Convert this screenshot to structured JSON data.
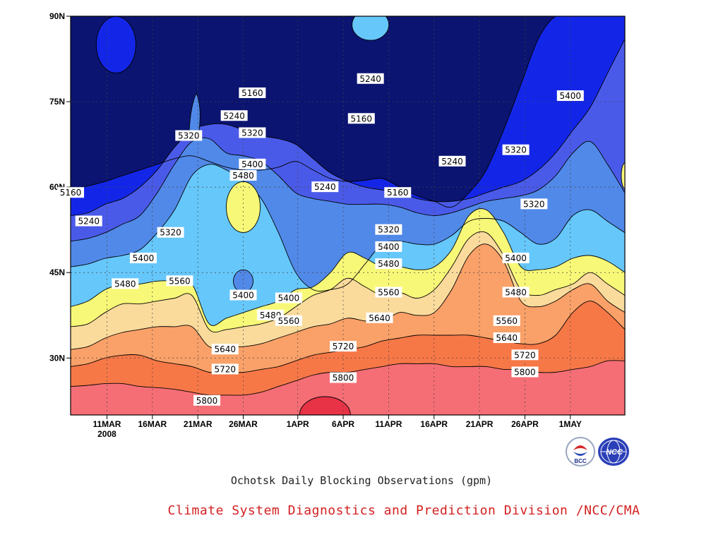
{
  "chart_data": {
    "type": "heatmap",
    "subtype": "filled-contour",
    "title": "Ochotsk Daily Blocking Observations (gpm)",
    "x_axis": {
      "ticks": [
        {
          "label": "11MAR",
          "date": "2008-03-11"
        },
        {
          "label": "16MAR",
          "date": "2008-03-16"
        },
        {
          "label": "21MAR",
          "date": "2008-03-21"
        },
        {
          "label": "26MAR",
          "date": "2008-03-26"
        },
        {
          "label": "1APR",
          "date": "2008-04-01"
        },
        {
          "label": "6APR",
          "date": "2008-04-06"
        },
        {
          "label": "11APR",
          "date": "2008-04-11"
        },
        {
          "label": "16APR",
          "date": "2008-04-16"
        },
        {
          "label": "21APR",
          "date": "2008-04-21"
        },
        {
          "label": "26APR",
          "date": "2008-04-26"
        },
        {
          "label": "1MAY",
          "date": "2008-05-01"
        }
      ],
      "year_label": "2008",
      "range": [
        "2008-03-07",
        "2008-05-07"
      ]
    },
    "y_axis": {
      "ticks": [
        "30N",
        "45N",
        "60N",
        "75N",
        "90N"
      ],
      "tick_values": [
        30,
        45,
        60,
        75,
        90
      ],
      "range": [
        20,
        90
      ]
    },
    "grid": true,
    "contour_levels": [
      5160,
      5240,
      5320,
      5400,
      5480,
      5560,
      5640,
      5720,
      5800
    ],
    "fill_colors": [
      "#0b1470",
      "#1326e8",
      "#4a5ae8",
      "#5189e8",
      "#66c7fb",
      "#f8f878",
      "#fadb9c",
      "#f9a168",
      "#f77847",
      "#f56e76",
      "#e83246"
    ],
    "boundaries": [
      {
        "level": 5160,
        "lats": [
          59.5,
          60.2,
          61,
          62,
          63,
          64,
          65,
          65.5,
          64.5,
          63.5,
          63,
          63,
          63.5,
          64.5,
          63,
          61.5,
          61,
          61.2,
          61.5,
          60,
          58.5,
          57.5,
          56.5,
          59,
          63,
          70,
          78,
          86,
          90,
          90,
          90,
          90,
          90
        ]
      },
      {
        "level": 5240,
        "lats": [
          55,
          55.5,
          57,
          58,
          60,
          63,
          67,
          70,
          71,
          71,
          70,
          69,
          68.5,
          67.5,
          65,
          62.5,
          61,
          60,
          59.5,
          59,
          58,
          57.5,
          57.5,
          58,
          59,
          60,
          61,
          63,
          66,
          70,
          74,
          80,
          86
        ]
      },
      {
        "level": 5320,
        "lats": [
          50.5,
          51,
          52,
          53.5,
          55,
          59,
          64,
          68,
          68.5,
          66,
          65.5,
          64.5,
          62,
          59,
          58,
          57.5,
          57,
          57,
          57,
          56.5,
          55.5,
          55,
          55.5,
          56.5,
          57.5,
          58,
          58.5,
          59.5,
          62,
          66,
          68,
          64,
          59
        ]
      },
      {
        "level": 5400,
        "lats": [
          46,
          46.5,
          47.5,
          48,
          49,
          52,
          56,
          62,
          64,
          63,
          61,
          58,
          52,
          45,
          42,
          42,
          43,
          46.5,
          50,
          50.5,
          50,
          50,
          51.5,
          54,
          54.5,
          54,
          52,
          50,
          51,
          55,
          56,
          54,
          52
        ]
      },
      {
        "level": 5480,
        "lats": [
          39,
          40,
          42,
          43,
          43,
          43.5,
          43.5,
          43,
          36,
          37,
          38,
          39,
          40,
          42,
          42.5,
          45,
          48.5,
          47.5,
          46,
          46,
          45.5,
          46,
          49,
          55,
          56,
          52,
          46,
          45.5,
          46,
          47.5,
          48,
          47,
          45
        ]
      },
      {
        "level": 5560,
        "lats": [
          35.5,
          36,
          38,
          39.5,
          39.5,
          40,
          40.5,
          41,
          35,
          35,
          35.5,
          36,
          37,
          39,
          41,
          42,
          44,
          42.5,
          41,
          41.5,
          40.5,
          42,
          46,
          51,
          52,
          48,
          42,
          41,
          42,
          43,
          45,
          43,
          41
        ]
      },
      {
        "level": 5640,
        "lats": [
          31.5,
          32,
          33.5,
          34.5,
          35,
          35.5,
          35.5,
          35.5,
          32,
          32,
          32,
          32.5,
          33.5,
          34.5,
          35.5,
          36,
          37,
          36.5,
          36.5,
          38,
          37.5,
          38,
          42,
          48,
          50,
          47,
          40,
          39,
          40,
          42,
          43,
          40,
          38
        ]
      },
      {
        "level": 5720,
        "lats": [
          28.5,
          29,
          30,
          30.5,
          30.5,
          29.5,
          29,
          28.5,
          27.5,
          27.5,
          27.5,
          28,
          28.5,
          29.5,
          30.5,
          31,
          31.5,
          32,
          33,
          33.5,
          34,
          34,
          34,
          34,
          33.5,
          33,
          32.5,
          32.5,
          34,
          38,
          40,
          38,
          35
        ]
      },
      {
        "level": 5800,
        "lats": [
          25,
          25.2,
          25.5,
          25.5,
          25,
          24.8,
          24.5,
          24,
          23.5,
          23.5,
          23.5,
          24,
          25,
          26,
          27,
          27.5,
          27.5,
          28,
          28.5,
          29,
          29,
          29,
          28.5,
          28.5,
          28.5,
          28,
          28,
          27.5,
          27.5,
          28,
          28.5,
          29.5,
          29.5
        ]
      }
    ],
    "labels": [
      {
        "text": "5160",
        "date": "2008-03-07",
        "lat": 59
      },
      {
        "text": "5240",
        "date": "2008-03-09",
        "lat": 54
      },
      {
        "text": "5320",
        "date": "2008-03-18",
        "lat": 52
      },
      {
        "text": "5320",
        "date": "2008-03-20",
        "lat": 69
      },
      {
        "text": "5400",
        "date": "2008-03-15",
        "lat": 47.5
      },
      {
        "text": "5480",
        "date": "2008-03-13",
        "lat": 43
      },
      {
        "text": "5560",
        "date": "2008-03-19",
        "lat": 43.5
      },
      {
        "text": "5160",
        "date": "2008-03-27",
        "lat": 76.5
      },
      {
        "text": "5240",
        "date": "2008-03-25",
        "lat": 72.5
      },
      {
        "text": "5320",
        "date": "2008-03-27",
        "lat": 69.5
      },
      {
        "text": "5400",
        "date": "2008-03-27",
        "lat": 64
      },
      {
        "text": "5480",
        "date": "2008-03-26",
        "lat": 62
      },
      {
        "text": "5400",
        "date": "2008-03-26",
        "lat": 41
      },
      {
        "text": "5400",
        "date": "2008-03-31",
        "lat": 40.5
      },
      {
        "text": "5480",
        "date": "2008-03-29",
        "lat": 37.5
      },
      {
        "text": "5560",
        "date": "2008-03-31",
        "lat": 36.5
      },
      {
        "text": "5640",
        "date": "2008-03-24",
        "lat": 31.5
      },
      {
        "text": "5720",
        "date": "2008-03-24",
        "lat": 28
      },
      {
        "text": "5800",
        "date": "2008-03-22",
        "lat": 22.5
      },
      {
        "text": "5240",
        "date": "2008-04-09",
        "lat": 79
      },
      {
        "text": "5160",
        "date": "2008-04-08",
        "lat": 72
      },
      {
        "text": "5240",
        "date": "2008-04-04",
        "lat": 60
      },
      {
        "text": "5160",
        "date": "2008-04-12",
        "lat": 59
      },
      {
        "text": "5320",
        "date": "2008-04-11",
        "lat": 52.5
      },
      {
        "text": "5400",
        "date": "2008-04-11",
        "lat": 49.5
      },
      {
        "text": "5480",
        "date": "2008-04-11",
        "lat": 46.5
      },
      {
        "text": "5560",
        "date": "2008-04-11",
        "lat": 41.5
      },
      {
        "text": "5640",
        "date": "2008-04-10",
        "lat": 37
      },
      {
        "text": "5720",
        "date": "2008-04-06",
        "lat": 32
      },
      {
        "text": "5800",
        "date": "2008-04-06",
        "lat": 26.5
      },
      {
        "text": "5240",
        "date": "2008-04-18",
        "lat": 64.5
      },
      {
        "text": "5320",
        "date": "2008-04-25",
        "lat": 66.5
      },
      {
        "text": "5400",
        "date": "2008-05-01",
        "lat": 76
      },
      {
        "text": "5320",
        "date": "2008-04-27",
        "lat": 57
      },
      {
        "text": "5400",
        "date": "2008-04-25",
        "lat": 47.5
      },
      {
        "text": "5480",
        "date": "2008-04-25",
        "lat": 41.5
      },
      {
        "text": "5560",
        "date": "2008-04-24",
        "lat": 36.5
      },
      {
        "text": "5640",
        "date": "2008-04-24",
        "lat": 33.5
      },
      {
        "text": "5720",
        "date": "2008-04-26",
        "lat": 30.5
      },
      {
        "text": "5800",
        "date": "2008-04-26",
        "lat": 27.5
      }
    ]
  },
  "footer": {
    "credit": "Climate System Diagnostics and Prediction Division /NCC/CMA",
    "credit_color": "#d32020",
    "logos": [
      {
        "name": "bcc-logo-icon",
        "text": "BCC"
      },
      {
        "name": "ncc-logo-icon",
        "text": "NCC"
      }
    ]
  }
}
